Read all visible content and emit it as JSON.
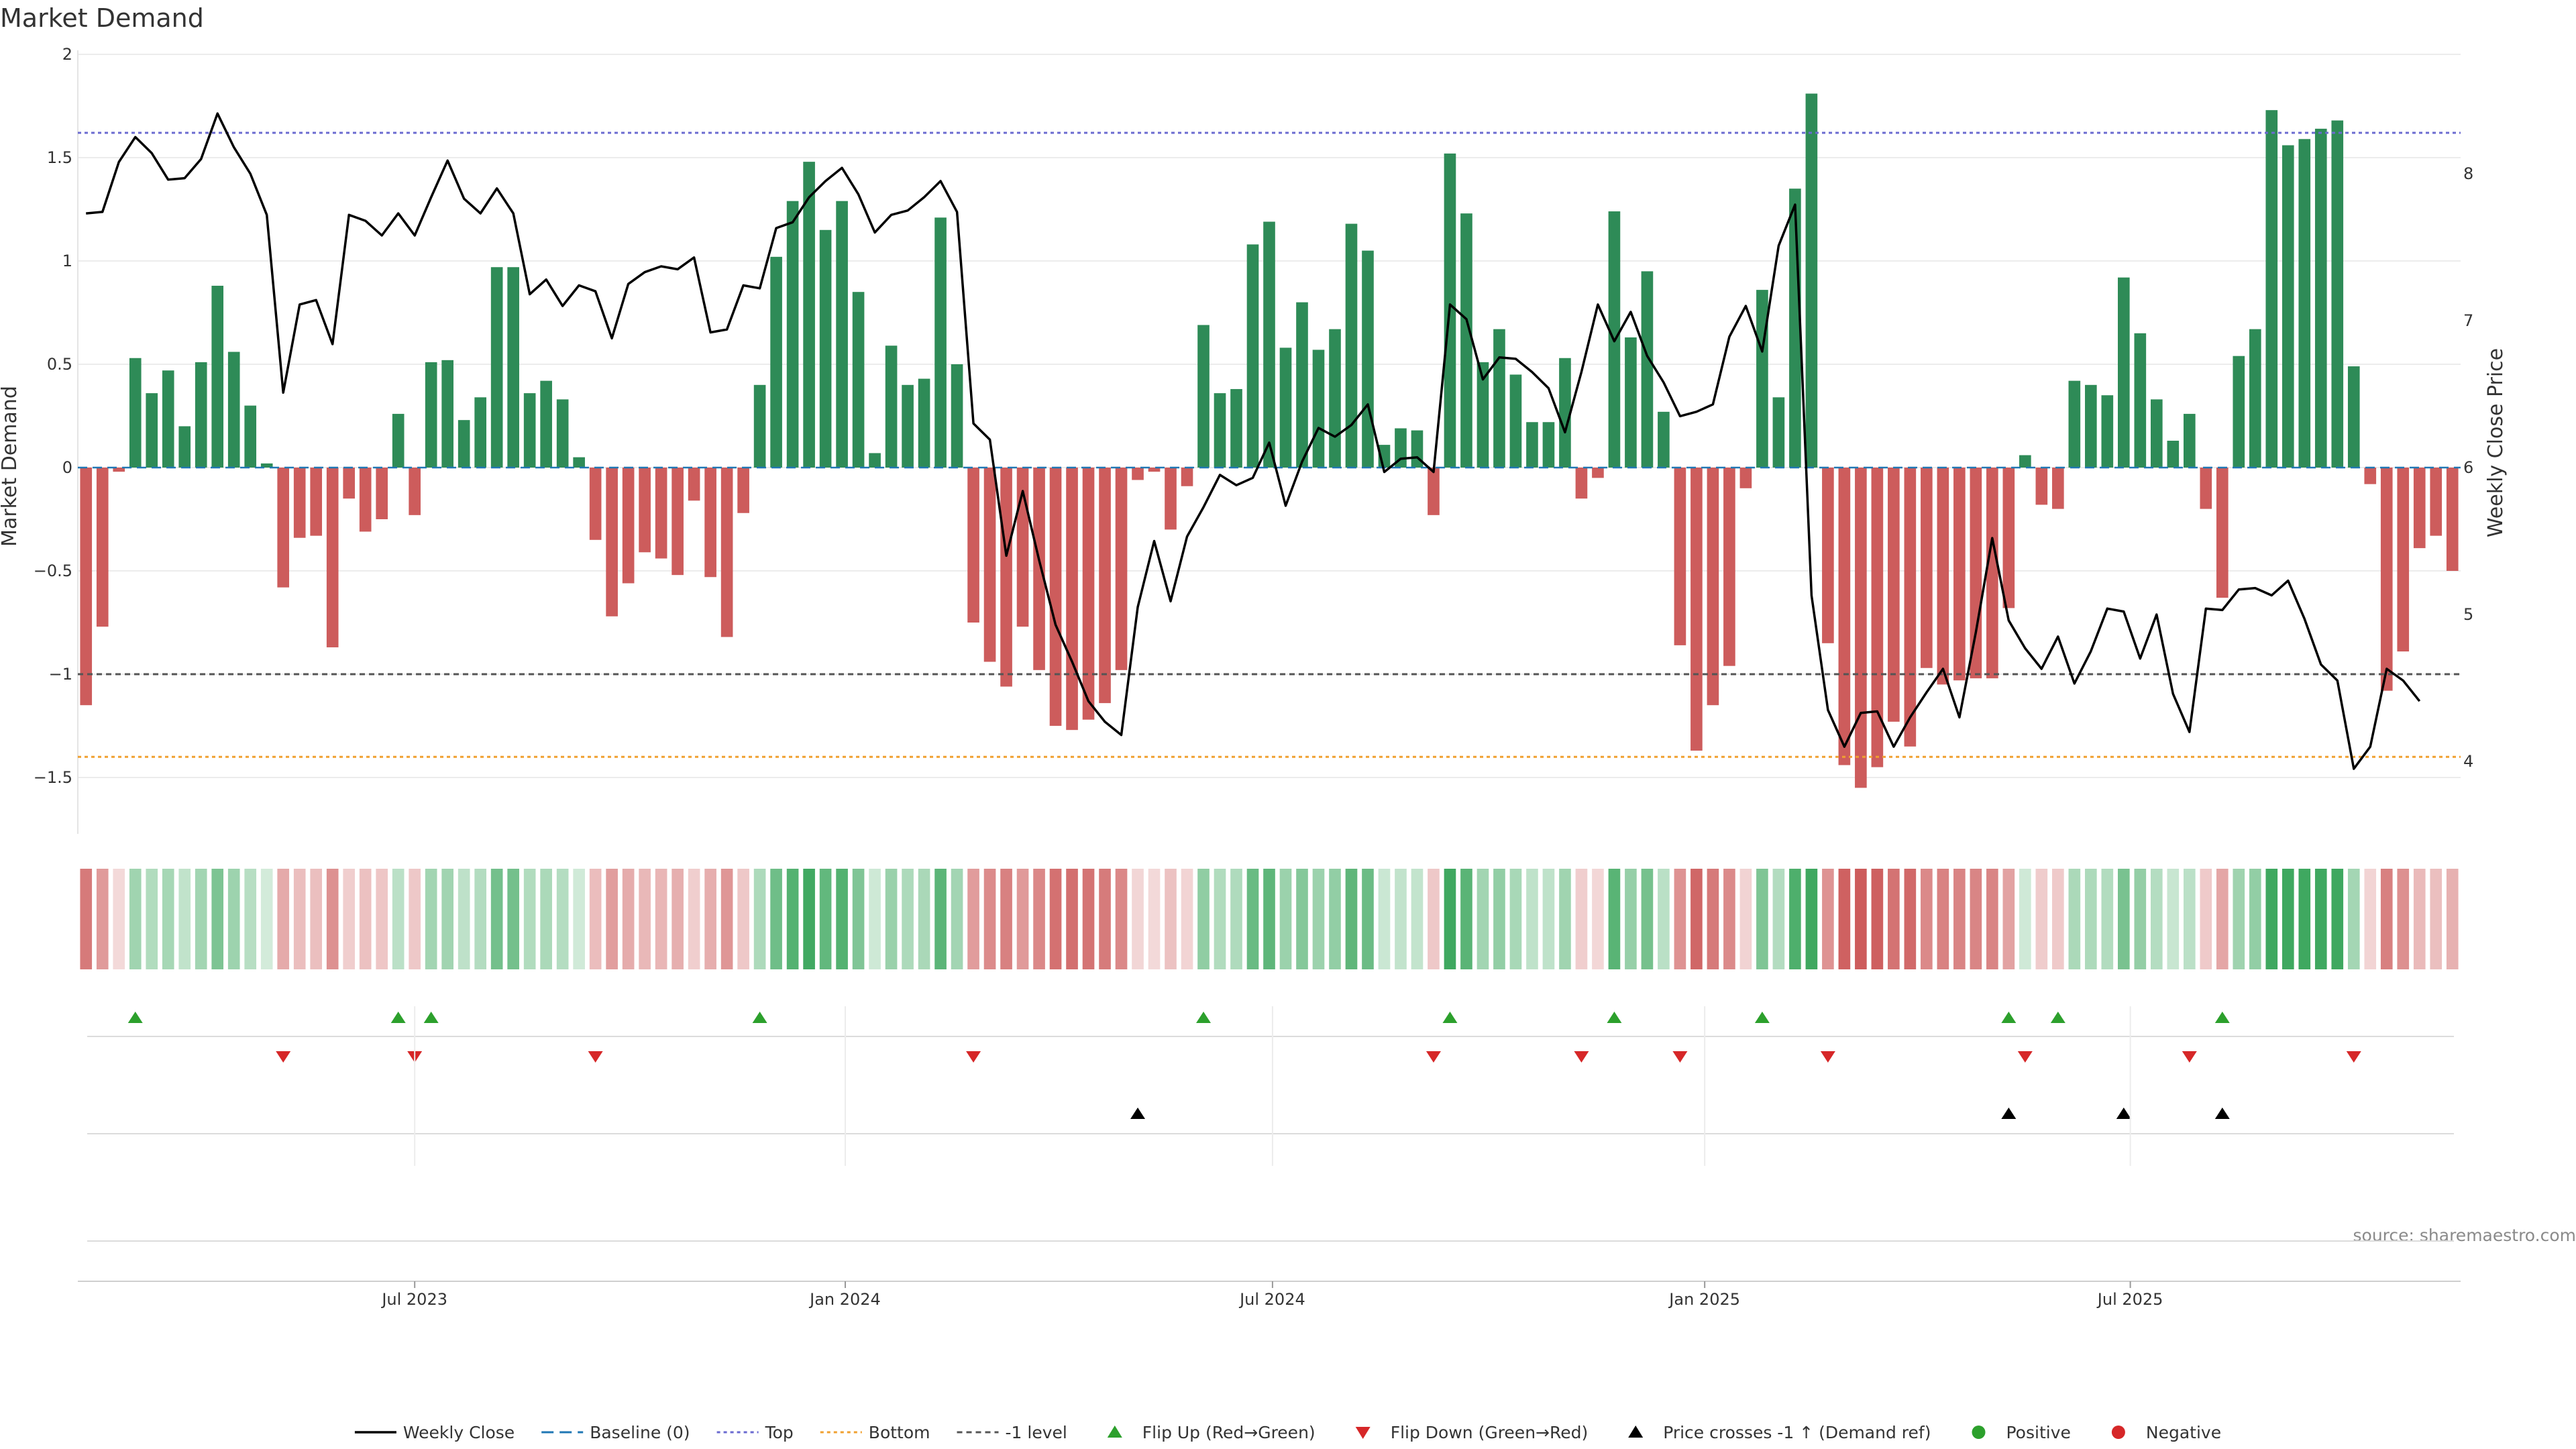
{
  "chart_data": {
    "type": "bar",
    "title": "Market Demand",
    "ylabel": "Market Demand",
    "ylabel_right": "Weekly Close Price",
    "ylim": [
      -1.78,
      2.0
    ],
    "ylim_right": [
      3.6,
      9.0
    ],
    "y_ticks": [
      "2",
      "1.5",
      "1",
      "0.5",
      "0",
      "−0.5",
      "−1",
      "−1.5"
    ],
    "y_tick_values": [
      2,
      1.5,
      1,
      0.5,
      0,
      -0.5,
      -1,
      -1.5
    ],
    "y_ticks_right": [
      "8",
      "7",
      "6",
      "5",
      "4"
    ],
    "y_tick_values_right": [
      8,
      7,
      6,
      5,
      4
    ],
    "x_ticks": [
      "Jul 2023",
      "Jan 2024",
      "Jul 2024",
      "Jan 2025",
      "Jul 2025"
    ],
    "x_tick_weeks": [
      20.5,
      46.7,
      72.7,
      99,
      124.9
    ],
    "reference_levels": {
      "top": 1.62,
      "bottom": -1.4,
      "minus_one": -1.0,
      "baseline": 0
    },
    "source_text": "source: sharemaestro.com",
    "colors": {
      "positive": "#2e8b57",
      "negative": "#cd5c5c",
      "top": "#6b6bd0",
      "bottom": "#f0a030",
      "minus_one": "#555555",
      "baseline": "#1f77b4",
      "flip_up": "#2ca02c",
      "flip_down": "#d62728",
      "cross": "#000000",
      "pos_dot": "#2ca02c",
      "neg_dot": "#d62728"
    },
    "series": [
      {
        "name": "Market Demand",
        "values": [
          -1.15,
          -0.77,
          -0.02,
          0.53,
          0.36,
          0.47,
          0.2,
          0.51,
          0.88,
          0.56,
          0.3,
          0.02,
          -0.58,
          -0.34,
          -0.33,
          -0.87,
          -0.15,
          -0.31,
          -0.25,
          0.26,
          -0.23,
          0.51,
          0.52,
          0.23,
          0.34,
          0.97,
          0.97,
          0.36,
          0.42,
          0.33,
          0.05,
          -0.35,
          -0.72,
          -0.56,
          -0.41,
          -0.44,
          -0.52,
          -0.16,
          -0.53,
          -0.82,
          -0.22,
          0.4,
          1.02,
          1.29,
          1.48,
          1.15,
          1.29,
          0.85,
          0.07,
          0.59,
          0.4,
          0.43,
          1.21,
          0.5,
          -0.75,
          -0.94,
          -1.06,
          -0.77,
          -0.98,
          -1.25,
          -1.27,
          -1.22,
          -1.14,
          -0.98,
          -0.06,
          -0.02,
          -0.3,
          -0.09,
          0.69,
          0.36,
          0.38,
          1.08,
          1.19,
          0.58,
          0.8,
          0.57,
          0.67,
          1.18,
          1.05,
          0.11,
          0.19,
          0.18,
          -0.23,
          1.52,
          1.23,
          0.51,
          0.67,
          0.45,
          0.22,
          0.22,
          0.53,
          -0.15,
          -0.05,
          1.24,
          0.63,
          0.95,
          0.27,
          -0.86,
          -1.37,
          -1.15,
          -0.96,
          -0.1,
          0.86,
          0.34,
          1.35,
          1.81,
          -0.85,
          -1.44,
          -1.55,
          -1.45,
          -1.23,
          -1.35,
          -0.97,
          -1.05,
          -1.03,
          -1.02,
          -1.02,
          -0.68,
          0.06,
          -0.18,
          -0.2,
          0.42,
          0.4,
          0.35,
          0.92,
          0.65,
          0.33,
          0.13,
          0.26,
          -0.2,
          -0.63,
          0.54,
          0.67,
          1.73,
          1.56,
          1.59,
          1.64,
          1.68,
          0.49,
          -0.08,
          -1.08,
          -0.89,
          -0.39,
          -0.33,
          -0.5
        ]
      },
      {
        "name": "Weekly Close",
        "values": [
          7.73,
          7.74,
          8.08,
          8.25,
          8.14,
          7.96,
          7.97,
          8.1,
          8.41,
          8.18,
          8.0,
          7.72,
          6.51,
          7.11,
          7.14,
          6.84,
          7.72,
          7.68,
          7.58,
          7.73,
          7.58,
          7.84,
          8.09,
          7.83,
          7.73,
          7.9,
          7.73,
          7.18,
          7.28,
          7.1,
          7.24,
          7.2,
          6.88,
          7.25,
          7.33,
          7.37,
          7.35,
          7.43,
          6.92,
          6.94,
          7.24,
          7.22,
          7.63,
          7.67,
          7.84,
          7.95,
          8.04,
          7.86,
          7.6,
          7.72,
          7.75,
          7.84,
          7.95,
          7.74,
          6.3,
          6.19,
          5.4,
          5.84,
          5.37,
          4.93,
          4.68,
          4.41,
          4.27,
          4.18,
          5.05,
          5.5,
          5.09,
          5.53,
          5.73,
          5.95,
          5.88,
          5.93,
          6.17,
          5.74,
          6.04,
          6.27,
          6.21,
          6.29,
          6.43,
          5.97,
          6.06,
          6.07,
          5.97,
          7.11,
          7.01,
          6.6,
          6.75,
          6.74,
          6.65,
          6.54,
          6.24,
          6.65,
          7.11,
          6.86,
          7.06,
          6.76,
          6.58,
          6.35,
          6.38,
          6.43,
          6.89,
          7.1,
          6.79,
          7.51,
          7.79,
          5.13,
          4.35,
          4.1,
          4.33,
          4.34,
          4.1,
          4.3,
          4.47,
          4.63,
          4.3,
          4.88,
          5.52,
          4.96,
          4.77,
          4.63,
          4.85,
          4.53,
          4.75,
          5.04,
          5.02,
          4.7,
          5.0,
          4.46,
          4.2,
          5.04,
          5.03,
          5.17,
          5.18,
          5.13,
          5.23,
          4.97,
          4.66,
          4.55,
          3.95,
          4.1,
          4.63,
          4.55,
          4.41
        ]
      }
    ],
    "flip_up_weeks": [
      3,
      19,
      21,
      41,
      68,
      83,
      93,
      102,
      117,
      120,
      130
    ],
    "flip_down_weeks": [
      12,
      20,
      31,
      54,
      82,
      91,
      97,
      106,
      118,
      128,
      138
    ],
    "price_cross_weeks": [
      64,
      117,
      124,
      130
    ],
    "legend": [
      {
        "key": "weekly_close",
        "label": "Weekly Close"
      },
      {
        "key": "baseline",
        "label": "Baseline (0)"
      },
      {
        "key": "top",
        "label": "Top"
      },
      {
        "key": "bottom",
        "label": "Bottom"
      },
      {
        "key": "minus_one",
        "label": "-1 level"
      },
      {
        "key": "flip_up",
        "label": "Flip Up (Red→Green)"
      },
      {
        "key": "flip_down",
        "label": "Flip Down (Green→Red)"
      },
      {
        "key": "cross",
        "label": "Price crosses -1 ↑ (Demand ref)"
      },
      {
        "key": "positive",
        "label": "Positive"
      },
      {
        "key": "negative",
        "label": "Negative"
      }
    ]
  }
}
